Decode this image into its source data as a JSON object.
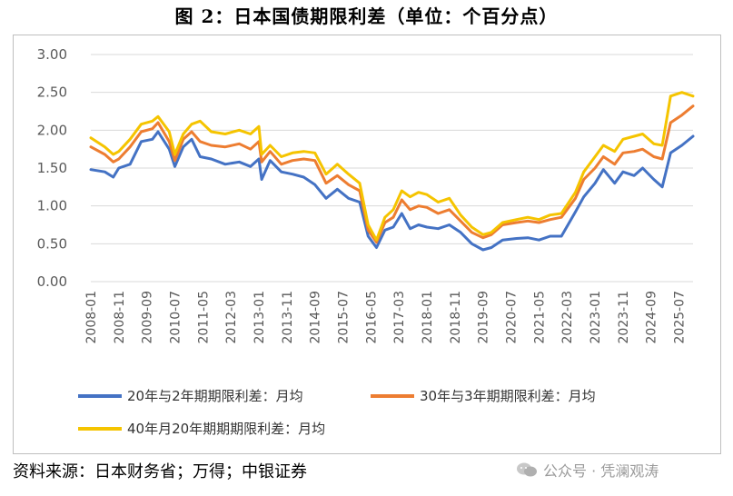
{
  "title": "图 2：日本国债期限利差（单位：个百分点）",
  "source": "资料来源：日本财务省；万得；中银证券",
  "watermark": "公众号 · 凭澜观涛",
  "chart_data": {
    "type": "line",
    "ylim": [
      0,
      3
    ],
    "yticks": [
      "0.00",
      "0.50",
      "1.00",
      "1.50",
      "2.00",
      "2.50",
      "3.00"
    ],
    "x_tick_labels": [
      "2008-01",
      "2008-11",
      "2009-09",
      "2010-07",
      "2011-05",
      "2012-03",
      "2013-01",
      "2013-11",
      "2014-09",
      "2015-07",
      "2016-05",
      "2017-03",
      "2018-01",
      "2018-11",
      "2019-09",
      "2020-07",
      "2021-05",
      "2022-03",
      "2023-01",
      "2023-11",
      "2024-09",
      "2025-07"
    ],
    "legend_position": "bottom",
    "grid": true,
    "series": [
      {
        "name": "20年与2年期期限利差：月均",
        "color": "#4472C4",
        "x": [
          "2008-01",
          "2008-06",
          "2008-09",
          "2008-11",
          "2009-03",
          "2009-07",
          "2009-11",
          "2010-01",
          "2010-05",
          "2010-07",
          "2010-10",
          "2011-01",
          "2011-04",
          "2011-08",
          "2012-01",
          "2012-06",
          "2012-10",
          "2013-01",
          "2013-02",
          "2013-05",
          "2013-09",
          "2014-01",
          "2014-05",
          "2014-09",
          "2015-01",
          "2015-05",
          "2015-09",
          "2016-01",
          "2016-04",
          "2016-07",
          "2016-10",
          "2017-01",
          "2017-04",
          "2017-07",
          "2017-10",
          "2018-01",
          "2018-05",
          "2018-09",
          "2019-01",
          "2019-05",
          "2019-09",
          "2019-12",
          "2020-04",
          "2020-09",
          "2021-01",
          "2021-05",
          "2021-09",
          "2022-01",
          "2022-06",
          "2022-09",
          "2023-01",
          "2023-04",
          "2023-08",
          "2023-11",
          "2024-03",
          "2024-06",
          "2024-10",
          "2025-01",
          "2025-04",
          "2025-08",
          "2025-12"
        ],
        "values": [
          1.48,
          1.45,
          1.38,
          1.5,
          1.55,
          1.85,
          1.88,
          1.98,
          1.75,
          1.52,
          1.78,
          1.88,
          1.65,
          1.62,
          1.55,
          1.58,
          1.52,
          1.62,
          1.35,
          1.6,
          1.45,
          1.42,
          1.38,
          1.28,
          1.1,
          1.22,
          1.1,
          1.05,
          0.6,
          0.45,
          0.68,
          0.72,
          0.9,
          0.7,
          0.75,
          0.72,
          0.7,
          0.75,
          0.65,
          0.5,
          0.42,
          0.45,
          0.55,
          0.57,
          0.58,
          0.55,
          0.6,
          0.6,
          0.92,
          1.12,
          1.3,
          1.48,
          1.3,
          1.45,
          1.4,
          1.5,
          1.35,
          1.25,
          1.7,
          1.8,
          1.92
        ]
      },
      {
        "name": "30年与3年期期限利差：月均",
        "color": "#ED7D31",
        "x": [
          "2008-01",
          "2008-06",
          "2008-09",
          "2008-11",
          "2009-03",
          "2009-07",
          "2009-11",
          "2010-01",
          "2010-05",
          "2010-07",
          "2010-10",
          "2011-01",
          "2011-04",
          "2011-08",
          "2012-01",
          "2012-06",
          "2012-10",
          "2013-01",
          "2013-02",
          "2013-05",
          "2013-09",
          "2014-01",
          "2014-05",
          "2014-09",
          "2015-01",
          "2015-05",
          "2015-09",
          "2016-01",
          "2016-04",
          "2016-07",
          "2016-10",
          "2017-01",
          "2017-04",
          "2017-07",
          "2017-10",
          "2018-01",
          "2018-05",
          "2018-09",
          "2019-01",
          "2019-05",
          "2019-09",
          "2019-12",
          "2020-04",
          "2020-09",
          "2021-01",
          "2021-05",
          "2021-09",
          "2022-01",
          "2022-06",
          "2022-09",
          "2023-01",
          "2023-04",
          "2023-08",
          "2023-11",
          "2024-03",
          "2024-06",
          "2024-10",
          "2025-01",
          "2025-04",
          "2025-08",
          "2025-12"
        ],
        "values": [
          1.78,
          1.68,
          1.58,
          1.62,
          1.78,
          1.98,
          2.02,
          2.1,
          1.85,
          1.6,
          1.88,
          1.98,
          1.85,
          1.8,
          1.78,
          1.82,
          1.75,
          1.85,
          1.58,
          1.72,
          1.55,
          1.6,
          1.62,
          1.6,
          1.3,
          1.4,
          1.28,
          1.2,
          0.68,
          0.52,
          0.78,
          0.85,
          1.08,
          0.95,
          1.0,
          0.98,
          0.9,
          0.95,
          0.8,
          0.65,
          0.58,
          0.62,
          0.75,
          0.78,
          0.8,
          0.78,
          0.82,
          0.85,
          1.1,
          1.35,
          1.5,
          1.65,
          1.55,
          1.7,
          1.72,
          1.75,
          1.65,
          1.62,
          2.1,
          2.2,
          2.32
        ]
      },
      {
        "name": "40年月20年期期期限利差：月均",
        "color": "#F5C400",
        "x": [
          "2008-01",
          "2008-06",
          "2008-09",
          "2008-11",
          "2009-03",
          "2009-07",
          "2009-11",
          "2010-01",
          "2010-05",
          "2010-07",
          "2010-10",
          "2011-01",
          "2011-04",
          "2011-08",
          "2012-01",
          "2012-06",
          "2012-10",
          "2013-01",
          "2013-02",
          "2013-05",
          "2013-09",
          "2014-01",
          "2014-05",
          "2014-09",
          "2015-01",
          "2015-05",
          "2015-09",
          "2016-01",
          "2016-04",
          "2016-07",
          "2016-10",
          "2017-01",
          "2017-04",
          "2017-07",
          "2017-10",
          "2018-01",
          "2018-05",
          "2018-09",
          "2019-01",
          "2019-05",
          "2019-09",
          "2019-12",
          "2020-04",
          "2020-09",
          "2021-01",
          "2021-05",
          "2021-09",
          "2022-01",
          "2022-06",
          "2022-09",
          "2023-01",
          "2023-04",
          "2023-08",
          "2023-11",
          "2024-03",
          "2024-06",
          "2024-10",
          "2025-01",
          "2025-04",
          "2025-08",
          "2025-12"
        ],
        "values": [
          1.9,
          1.78,
          1.68,
          1.72,
          1.88,
          2.08,
          2.12,
          2.18,
          1.98,
          1.68,
          1.95,
          2.08,
          2.12,
          1.98,
          1.95,
          2.0,
          1.95,
          2.05,
          1.68,
          1.8,
          1.65,
          1.7,
          1.72,
          1.7,
          1.42,
          1.55,
          1.42,
          1.3,
          0.75,
          0.55,
          0.85,
          0.95,
          1.2,
          1.12,
          1.18,
          1.15,
          1.05,
          1.1,
          0.88,
          0.72,
          0.62,
          0.65,
          0.78,
          0.82,
          0.85,
          0.82,
          0.88,
          0.9,
          1.18,
          1.45,
          1.65,
          1.8,
          1.72,
          1.88,
          1.92,
          1.95,
          1.82,
          1.8,
          2.45,
          2.5,
          2.45
        ]
      }
    ]
  }
}
